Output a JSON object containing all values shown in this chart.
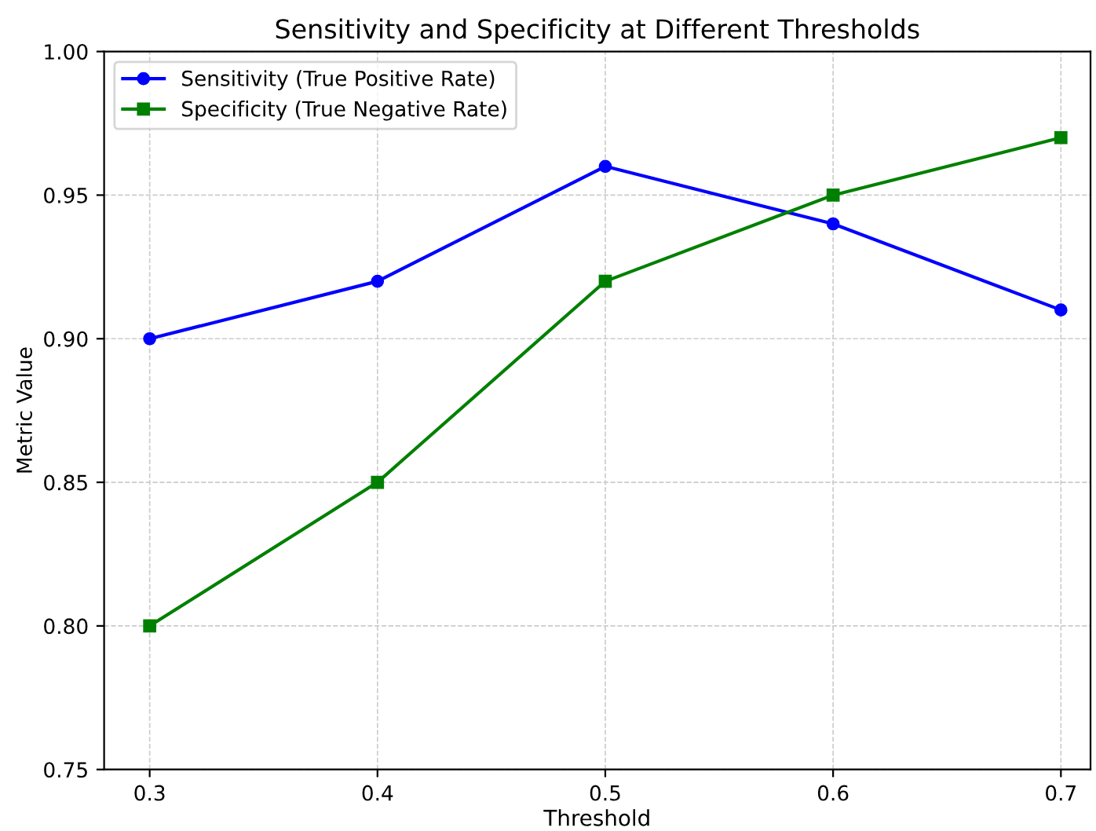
{
  "chart_data": {
    "type": "line",
    "title": "Sensitivity and Specificity at Different Thresholds",
    "xlabel": "Threshold",
    "ylabel": "Metric Value",
    "x": [
      0.3,
      0.4,
      0.5,
      0.6,
      0.7
    ],
    "series": [
      {
        "name": "Sensitivity (True Positive Rate)",
        "color": "#0000ff",
        "marker": "circle",
        "values": [
          0.9,
          0.92,
          0.96,
          0.94,
          0.91
        ]
      },
      {
        "name": "Specificity (True Negative Rate)",
        "color": "#008000",
        "marker": "square",
        "values": [
          0.8,
          0.85,
          0.92,
          0.95,
          0.97
        ]
      }
    ],
    "xlim": [
      0.28,
      0.713
    ],
    "xticks": [
      0.3,
      0.4,
      0.5,
      0.6,
      0.7
    ],
    "ylim": [
      0.75,
      1.0
    ],
    "yticks": [
      {
        "value": 0.75,
        "label": "0.75"
      },
      {
        "value": 0.8,
        "label": "0.80"
      },
      {
        "value": 0.85,
        "label": "0.85"
      },
      {
        "value": 0.9,
        "label": "0.90"
      },
      {
        "value": 0.95,
        "label": "0.95"
      },
      {
        "value": 1.0,
        "label": "1.00"
      }
    ],
    "grid": true,
    "legend": "top left",
    "line_style": "solid"
  }
}
